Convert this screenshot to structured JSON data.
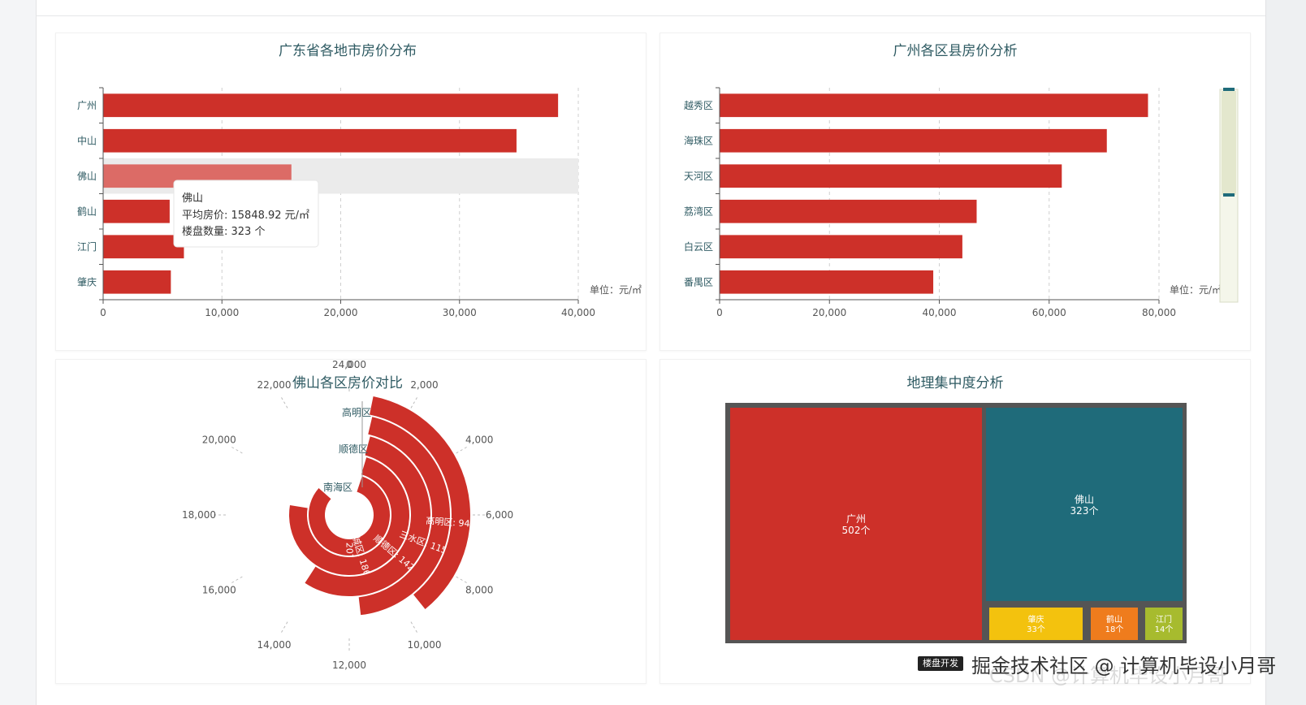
{
  "colors": {
    "bar": "#cd3029",
    "bar_highlight": "#dc6b66",
    "teal": "#1f6b7a",
    "axis": "#555",
    "text": "#2f5b63"
  },
  "chart_data": [
    {
      "type": "bar",
      "title": "广东省各地市房价分布",
      "categories": [
        "广州",
        "中山",
        "佛山",
        "鹤山",
        "江门",
        "肇庆"
      ],
      "values": [
        38300,
        34800,
        15848.92,
        5600,
        6800,
        5700
      ],
      "xlim": [
        0,
        40000
      ],
      "x_ticks": [
        "0",
        "10,000",
        "20,000",
        "30,000",
        "40,000"
      ],
      "unit": "单位：元/㎡",
      "tooltip": {
        "title": "佛山",
        "lines": [
          "平均房价: 15848.92 元/㎡",
          "楼盘数量: 323 个"
        ]
      }
    },
    {
      "type": "bar",
      "title": "广州各区县房价分析",
      "categories": [
        "越秀区",
        "海珠区",
        "天河区",
        "荔湾区",
        "白云区",
        "番禺区"
      ],
      "values": [
        78000,
        70500,
        62300,
        46800,
        44200,
        38900
      ],
      "xlim": [
        0,
        80000
      ],
      "x_ticks": [
        "0",
        "20,000",
        "40,000",
        "60,000",
        "80,000"
      ],
      "unit": "单位：元/㎡"
    },
    {
      "type": "bar",
      "subtype": "polar",
      "title": "佛山各区房价对比",
      "categories": [
        "南海区",
        "禅城区",
        "顺德区",
        "三水区",
        "高明区"
      ],
      "values": [
        20753.49,
        18624.49,
        14204.88,
        11561.9,
        9408.33
      ],
      "bar_labels": [
        "南海区: 20753.49",
        "禅城区: 18624.49",
        "顺德区: 14204.88",
        "三水区: 11561.90",
        "高明区: 9408.33"
      ],
      "radial_labels": [
        "高明区",
        "顺德区",
        "南海区"
      ],
      "angle_max": 24000,
      "angle_ticks": [
        "0",
        "2,000",
        "4,000",
        "6,000",
        "8,000",
        "10,000",
        "12,000",
        "14,000",
        "16,000",
        "18,000",
        "20,000",
        "22,000",
        "24,000"
      ]
    },
    {
      "type": "heatmap",
      "subtype": "treemap",
      "title": "地理集中度分析",
      "items": [
        {
          "name": "广州",
          "count": 502,
          "label": "502个",
          "color": "#cd3029"
        },
        {
          "name": "佛山",
          "count": 323,
          "label": "323个",
          "color": "#1f6b7a"
        },
        {
          "name": "肇庆",
          "count": 33,
          "label": "33个",
          "color": "#f3c20e"
        },
        {
          "name": "鹤山",
          "count": 18,
          "label": "18个",
          "color": "#ef7c1d"
        },
        {
          "name": "江门",
          "count": 14,
          "label": "14个",
          "color": "#a7bb2e"
        }
      ]
    }
  ],
  "watermark": "掘金技术社区 @ 计算机毕设小月哥",
  "watermark_shadow": "CSDN @计算机毕设小月哥",
  "bottom_tag": "楼盘开发"
}
